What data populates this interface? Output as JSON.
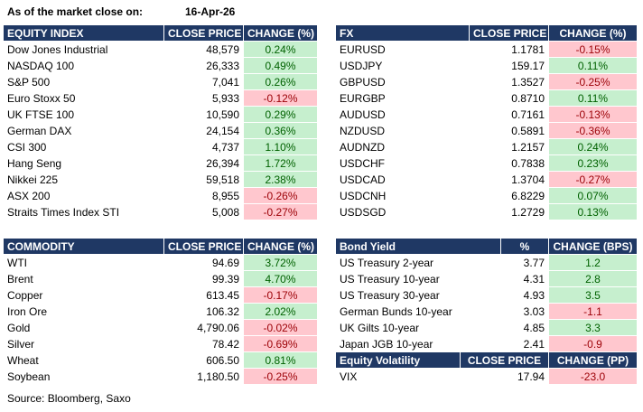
{
  "header": {
    "label": "As of the market close on:",
    "date": "16-Apr-26"
  },
  "tables": [
    {
      "columns": [
        "EQUITY INDEX",
        "CLOSE PRICE",
        "CHANGE (%)"
      ],
      "rows": [
        [
          "Dow Jones Industrial",
          "48,579",
          "0.24%"
        ],
        [
          "NASDAQ 100",
          "26,333",
          "0.49%"
        ],
        [
          "S&P 500",
          "7,041",
          "0.26%"
        ],
        [
          "Euro Stoxx 50",
          "5,933",
          "-0.12%"
        ],
        [
          "UK FTSE 100",
          "10,590",
          "0.29%"
        ],
        [
          "German DAX",
          "24,154",
          "0.36%"
        ],
        [
          "CSI 300",
          "4,737",
          "1.10%"
        ],
        [
          "Hang Seng",
          "26,394",
          "1.72%"
        ],
        [
          "Nikkei 225",
          "59,518",
          "2.38%"
        ],
        [
          "ASX 200",
          "8,955",
          "-0.26%"
        ],
        [
          "Straits Times Index STI",
          "5,008",
          "-0.27%"
        ]
      ]
    },
    {
      "columns": [
        "FX",
        "CLOSE PRICE",
        "CHANGE (%)"
      ],
      "rows": [
        [
          "EURUSD",
          "1.1781",
          "-0.15%"
        ],
        [
          "USDJPY",
          "159.17",
          "0.11%"
        ],
        [
          "GBPUSD",
          "1.3527",
          "-0.25%"
        ],
        [
          "EURGBP",
          "0.8710",
          "0.11%"
        ],
        [
          "AUDUSD",
          "0.7161",
          "-0.13%"
        ],
        [
          "NZDUSD",
          "0.5891",
          "-0.36%"
        ],
        [
          "AUDNZD",
          "1.2157",
          "0.24%"
        ],
        [
          "USDCHF",
          "0.7838",
          "0.23%"
        ],
        [
          "USDCAD",
          "1.3704",
          "-0.27%"
        ],
        [
          "USDCNH",
          "6.8229",
          "0.07%"
        ],
        [
          "USDSGD",
          "1.2729",
          "0.13%"
        ]
      ]
    },
    {
      "columns": [
        "COMMODITY",
        "CLOSE PRICE",
        "CHANGE (%)"
      ],
      "rows": [
        [
          "WTI",
          "94.69",
          "3.72%"
        ],
        [
          "Brent",
          "99.39",
          "4.70%"
        ],
        [
          "Copper",
          "613.45",
          "-0.17%"
        ],
        [
          "Iron Ore",
          "106.32",
          "2.02%"
        ],
        [
          "Gold",
          "4,790.06",
          "-0.02%"
        ],
        [
          "Silver",
          "78.42",
          "-0.69%"
        ],
        [
          "Wheat",
          "606.50",
          "0.81%"
        ],
        [
          "Soybean",
          "1,180.50",
          "-0.25%"
        ]
      ]
    },
    {
      "columns": [
        "Bond Yield",
        "%",
        "CHANGE (BPS)"
      ],
      "rows": [
        [
          "US Treasury 2-year",
          "3.77",
          "1.2"
        ],
        [
          "US Treasury 10-year",
          "4.31",
          "2.8"
        ],
        [
          "US Treasury 30-year",
          "4.93",
          "3.5"
        ],
        [
          "German Bunds 10-year",
          "3.03",
          "-1.1"
        ],
        [
          "UK Gilts 10-year",
          "4.85",
          "3.3"
        ],
        [
          "Japan JGB 10-year",
          "2.41",
          "-0.9"
        ]
      ]
    },
    {
      "columns": [
        "Equity Volatility",
        "CLOSE PRICE",
        "CHANGE (PP)"
      ],
      "rows": [
        [
          "VIX",
          "17.94",
          "-23.0"
        ]
      ]
    }
  ],
  "source": "Source: Bloomberg, Saxo"
}
